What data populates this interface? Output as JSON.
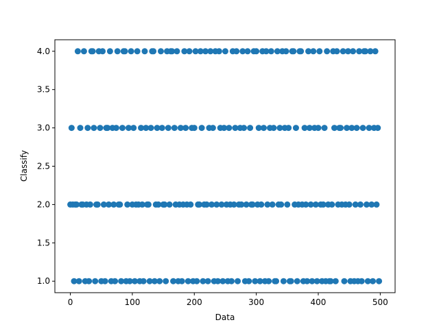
{
  "chart_data": {
    "type": "scatter",
    "xlabel": "Data",
    "ylabel": "Classify",
    "color": "#1f77b4",
    "xlim": [
      -24.95,
      523.95
    ],
    "ylim": [
      0.85,
      4.15
    ],
    "xticks": [
      0,
      100,
      200,
      300,
      400,
      500
    ],
    "yticks": [
      {
        "value": 1,
        "label": "1.0"
      },
      {
        "value": 1.5,
        "label": "1.5"
      },
      {
        "value": 2,
        "label": "2.0"
      },
      {
        "value": 2.5,
        "label": "2.5"
      },
      {
        "value": 3,
        "label": "3.0"
      },
      {
        "value": 3.5,
        "label": "3.5"
      },
      {
        "value": 4,
        "label": "4.0"
      }
    ],
    "x": [
      0,
      2,
      4,
      6,
      8,
      10,
      12,
      14,
      16,
      18,
      20,
      22,
      24,
      26,
      28,
      30,
      32,
      34,
      36,
      38,
      40,
      42,
      44,
      46,
      48,
      50,
      52,
      54,
      56,
      58,
      60,
      62,
      64,
      66,
      68,
      70,
      72,
      74,
      76,
      78,
      80,
      82,
      84,
      86,
      88,
      90,
      92,
      94,
      96,
      98,
      100,
      102,
      104,
      106,
      108,
      110,
      112,
      114,
      116,
      118,
      120,
      122,
      124,
      126,
      128,
      130,
      132,
      134,
      136,
      138,
      140,
      142,
      144,
      146,
      148,
      150,
      152,
      154,
      156,
      158,
      160,
      162,
      164,
      166,
      168,
      170,
      172,
      174,
      176,
      178,
      180,
      182,
      184,
      186,
      188,
      190,
      192,
      194,
      196,
      198,
      200,
      202,
      204,
      206,
      208,
      210,
      212,
      214,
      216,
      218,
      220,
      222,
      224,
      226,
      228,
      230,
      232,
      234,
      236,
      238,
      240,
      242,
      244,
      246,
      248,
      250,
      252,
      254,
      256,
      258,
      260,
      262,
      264,
      266,
      268,
      270,
      272,
      274,
      276,
      278,
      280,
      282,
      284,
      286,
      288,
      290,
      292,
      294,
      296,
      298,
      300,
      302,
      304,
      306,
      308,
      310,
      312,
      314,
      316,
      318,
      320,
      322,
      324,
      326,
      328,
      330,
      332,
      334,
      336,
      338,
      340,
      342,
      344,
      346,
      348,
      350,
      352,
      354,
      356,
      358,
      360,
      362,
      364,
      366,
      368,
      370,
      372,
      374,
      376,
      378,
      380,
      382,
      384,
      386,
      388,
      390,
      392,
      394,
      396,
      398,
      400,
      402,
      404,
      406,
      408,
      410,
      412,
      414,
      416,
      418,
      420,
      422,
      424,
      426,
      428,
      430,
      432,
      434,
      436,
      438,
      440,
      442,
      444,
      446,
      448,
      450,
      452,
      454,
      456,
      458,
      460,
      462,
      464,
      466,
      468,
      470,
      472,
      474,
      476,
      478,
      480,
      482,
      484,
      486,
      488,
      490,
      492,
      494,
      496,
      498
    ],
    "y": [
      2,
      3,
      2,
      1,
      2,
      2,
      4,
      1,
      3,
      2,
      2,
      4,
      1,
      2,
      3,
      1,
      2,
      4,
      4,
      3,
      1,
      2,
      2,
      4,
      3,
      1,
      4,
      2,
      1,
      3,
      3,
      2,
      4,
      1,
      3,
      2,
      1,
      3,
      4,
      2,
      2,
      1,
      3,
      4,
      4,
      1,
      2,
      3,
      1,
      4,
      2,
      3,
      1,
      2,
      4,
      2,
      1,
      3,
      2,
      1,
      4,
      3,
      2,
      2,
      1,
      3,
      4,
      4,
      1,
      2,
      3,
      2,
      1,
      4,
      3,
      2,
      2,
      1,
      4,
      3,
      2,
      4,
      4,
      1,
      3,
      2,
      4,
      1,
      2,
      3,
      1,
      2,
      4,
      3,
      2,
      1,
      4,
      2,
      3,
      1,
      3,
      4,
      1,
      2,
      2,
      4,
      3,
      1,
      2,
      4,
      2,
      1,
      3,
      4,
      2,
      3,
      1,
      4,
      2,
      1,
      4,
      3,
      2,
      1,
      3,
      4,
      2,
      1,
      3,
      2,
      1,
      4,
      2,
      3,
      4,
      1,
      2,
      3,
      2,
      4,
      3,
      1,
      2,
      4,
      1,
      3,
      2,
      2,
      4,
      1,
      4,
      2,
      3,
      1,
      2,
      4,
      3,
      1,
      4,
      2,
      1,
      3,
      4,
      2,
      3,
      1,
      1,
      4,
      2,
      3,
      2,
      4,
      1,
      3,
      4,
      2,
      3,
      1,
      1,
      4,
      4,
      2,
      3,
      1,
      2,
      4,
      4,
      2,
      1,
      3,
      2,
      1,
      4,
      3,
      2,
      1,
      4,
      3,
      2,
      1,
      3,
      4,
      2,
      1,
      2,
      3,
      1,
      4,
      2,
      1,
      1,
      2,
      4,
      3,
      1,
      4,
      2,
      3,
      3,
      2,
      4,
      1,
      2,
      3,
      4,
      2,
      1,
      3,
      4,
      1,
      2,
      3,
      1,
      4,
      2,
      1,
      3,
      4,
      4,
      2,
      1,
      3,
      4,
      2,
      1,
      3,
      4,
      2,
      3,
      1
    ]
  }
}
